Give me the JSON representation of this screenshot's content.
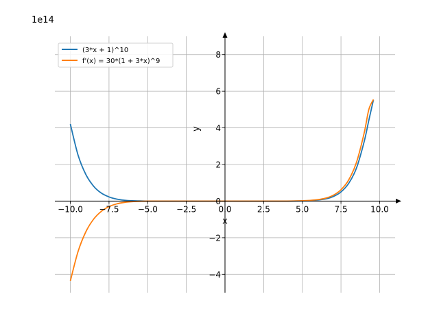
{
  "chart_data": {
    "type": "line",
    "x_ticks": [
      "−10.0",
      "−7.5",
      "−5.0",
      "−2.5",
      "0.0",
      "2.5",
      "5.0",
      "7.5",
      "10.0"
    ],
    "x_tick_values": [
      -10,
      -7.5,
      -5,
      -2.5,
      0,
      2.5,
      5,
      7.5,
      10
    ],
    "y_ticks": [
      "−4",
      "−2",
      "0",
      "2",
      "4",
      "6",
      "8"
    ],
    "y_tick_values": [
      -4,
      -2,
      0,
      2,
      4,
      6,
      8
    ],
    "y_offset_label": "1e14",
    "xlabel": "x",
    "ylabel": "y",
    "xlim": [
      -11,
      11
    ],
    "ylim": [
      -5,
      9
    ],
    "grid": true,
    "legend_position": "top-left",
    "series": [
      {
        "name": "(3*x + 1)^10",
        "color": "#1f77b4",
        "x": [
          -10.0,
          -9.5,
          -9.0,
          -8.5,
          -8.0,
          -7.5,
          -7.0,
          -6.5,
          -6.0,
          -5.5,
          -5.0,
          -4.0,
          -3.0,
          -2.0,
          0.0,
          2.0,
          4.0,
          5.0,
          5.5,
          6.0,
          6.5,
          7.0,
          7.5,
          8.0,
          8.5,
          9.0,
          9.3,
          9.6
        ],
        "y": [
          4.21,
          2.51,
          1.46,
          0.82,
          0.44,
          0.23,
          0.11,
          0.05,
          0.02,
          0.01,
          0.0,
          0.0,
          0.0,
          0.0,
          0.0,
          0.0,
          0.0,
          0.01,
          0.03,
          0.06,
          0.12,
          0.25,
          0.5,
          0.97,
          1.8,
          3.25,
          4.41,
          5.53
        ]
      },
      {
        "name": "f'(x) = 30*(1 + 3*x)^9",
        "color": "#ff7f0e",
        "x": [
          -10.0,
          -9.5,
          -9.0,
          -8.5,
          -8.0,
          -7.5,
          -7.0,
          -6.5,
          -6.0,
          -5.5,
          -5.0,
          -4.0,
          -3.0,
          -2.0,
          0.0,
          2.0,
          4.0,
          5.0,
          5.5,
          6.0,
          6.5,
          7.0,
          7.5,
          8.0,
          8.5,
          9.0,
          9.3,
          9.6
        ],
        "y": [
          -4.36,
          -2.75,
          -1.68,
          -0.99,
          -0.56,
          -0.3,
          -0.15,
          -0.07,
          -0.03,
          -0.01,
          0.0,
          0.0,
          0.0,
          0.0,
          0.0,
          0.0,
          0.0,
          0.02,
          0.04,
          0.08,
          0.16,
          0.32,
          0.62,
          1.16,
          2.11,
          3.72,
          5.0,
          5.55
        ]
      }
    ]
  }
}
